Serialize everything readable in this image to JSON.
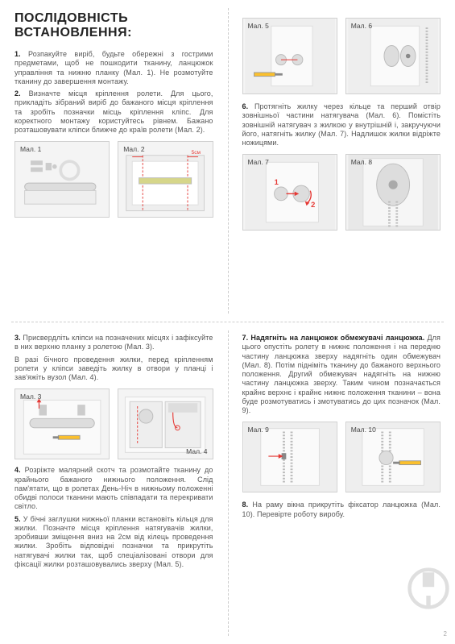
{
  "title": "ПОСЛІДОВНІСТЬ ВСТАНОВЛЕННЯ:",
  "leftTop": {
    "p1": "<b>1.</b> Розпакуйте виріб, будьте обережні з гострими предметами, щоб не пошкодити тканину, ланцюжок управління та нижню планку (Мал. 1). Не розмотуйте тканину до завершення монтажу.",
    "p2": "<b>2.</b> Визначте місця кріплення ролети. Для цього, прикладіть зібраний виріб до бажаного місця кріплення та зробіть позначки місць кріплення кліпс. Для коректного монтажу користуйтесь рівнем. Бажано розташовувати кліпси ближче до країв ролети (Мал. 2)."
  },
  "rightTop": {
    "p6": "<b>6.</b> Протягніть жилку через кільце та перший отвір зовнішньої частини натягувача (Мал. 6). Помістіть зовнішній натягувач з жилкою у внутрішній і, закручуючи його, натягніть жилку (Мал. 7). Надлишок жилки відріжте ножицями."
  },
  "leftBottom": {
    "p3": "<b>3.</b> Присвердліть кліпси на позначених місцях і зафіксуйте в них верхню планку з ролетою (Мал. 3).",
    "p3b": "В разі бічного проведення жилки, перед кріпленням ролети у кліпси заведіть жилку в отвори у планці і зав'яжіть вузол (Мал. 4).",
    "p4": "<b>4.</b> Розріжте малярний скотч та розмотайте тканину до крайнього бажаного нижнього положення. Слід пам'ятати, що в ролетах День-Ніч в нижньому положенні обидві полоси тканини мають співпадати та перекривати світло.",
    "p5": "<b>5.</b> У бічні заглушки нижньої планки встановіть кільця для жилки. Позначте місця кріплення натягувачів жилки, зробивши зміщення вниз на 2см від кілець проведення жилки. Зробіть відповідні позначки та прикрутіть натягувачі жилки так, щоб спеціалізовані отвори для фіксації жилки розташовувались зверху (Мал. 5)."
  },
  "rightBottom": {
    "p7": "<b>7. Надягніть на ланцюжок обмежувачі ланцюжка.</b> Для цього опустіть ролету в нижнє положення і на передню частину ланцюжка зверху надягніть один обмежувач (Мал. 8). Потім підніміть тканину до бажаного верхнього положення. Другий обмежувач надягніть на нижню частину ланцюжка зверху. Таким чином позначається крайнє верхнє і крайнє нижнє положення тканини – вона буде розмотуватись і змотуватись до цих позначок (Мал. 9).",
    "p8": "<b>8.</b> На раму вікна прикрутіть фіксатор ланцюжка (Мал. 10). Перевірте роботу виробу."
  },
  "figs": {
    "m1": "Мал. 1",
    "m2": "Мал. 2",
    "m3": "Мал. 3",
    "m4": "Мал. 4",
    "m5": "Мал. 5",
    "m6": "Мал. 6",
    "m7": "Мал. 7",
    "m8": "Мал. 8",
    "m9": "Мал. 9",
    "m10": "Мал. 10"
  },
  "dim5cm": "5см",
  "pageNumber": "2",
  "colors": {
    "red": "#e53935",
    "grey": "#cfcfcf",
    "darkgrey": "#9e9e9e",
    "yellow": "#fbc02d"
  }
}
